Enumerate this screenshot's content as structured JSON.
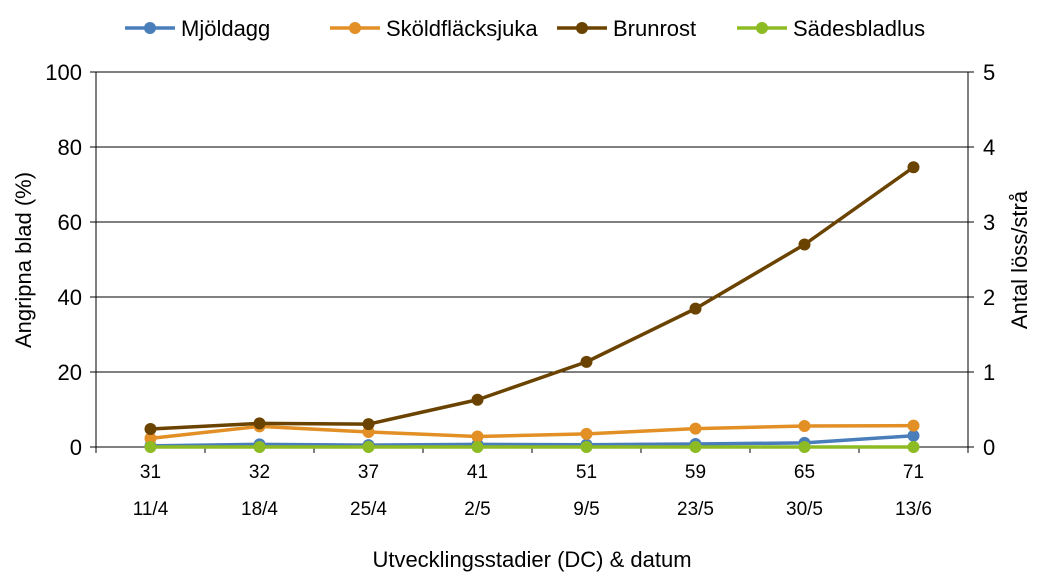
{
  "chart_data": {
    "type": "line",
    "categories_dc": [
      "31",
      "32",
      "37",
      "41",
      "51",
      "59",
      "65",
      "71"
    ],
    "categories_date": [
      "11/4",
      "18/4",
      "25/4",
      "2/5",
      "9/5",
      "23/5",
      "30/5",
      "13/6"
    ],
    "xlabel": "Utvecklingsstadier (DC) & datum",
    "ylabel_left": "Angripna blad (%)",
    "ylabel_right": "Antal löss/strå",
    "ylim_left": [
      0,
      100
    ],
    "ylim_right": [
      0,
      5
    ],
    "yticks_left": [
      "0",
      "20",
      "40",
      "60",
      "80",
      "100"
    ],
    "yticks_right": [
      "0",
      "1",
      "2",
      "3",
      "4",
      "5"
    ],
    "grid": true,
    "legend_position": "top",
    "series": [
      {
        "name": "Mjöldagg",
        "axis": "left",
        "color": "#4A7EBB",
        "values": [
          0.3,
          0.7,
          0.5,
          0.7,
          0.6,
          0.8,
          1.1,
          3.0
        ]
      },
      {
        "name": "Sköldfläcksjuka",
        "axis": "left",
        "color": "#E28F26",
        "values": [
          2.3,
          5.5,
          4.0,
          2.8,
          3.5,
          4.9,
          5.6,
          5.7
        ]
      },
      {
        "name": "Brunrost",
        "axis": "left",
        "color": "#6B4300",
        "values": [
          4.8,
          6.3,
          6.1,
          12.6,
          22.7,
          36.9,
          54.0,
          74.6
        ]
      },
      {
        "name": "Sädesbladlus",
        "axis": "right",
        "color": "#8DBB24",
        "values": [
          0,
          0,
          0,
          0,
          0,
          0,
          0,
          0
        ]
      }
    ]
  }
}
